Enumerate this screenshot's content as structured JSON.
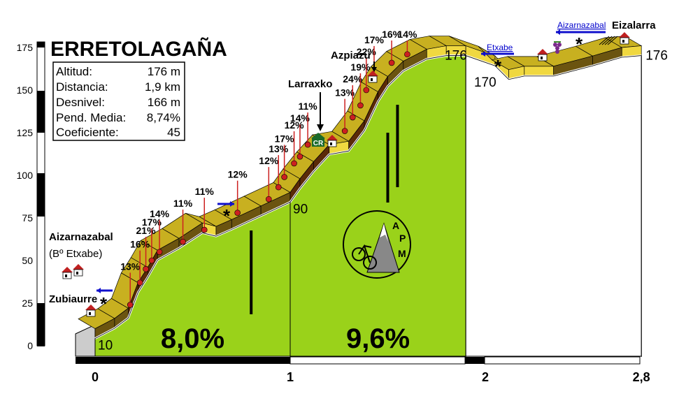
{
  "title": "ERRETOLAGAÑA",
  "stats": [
    {
      "label": "Altitud:",
      "value": "176 m"
    },
    {
      "label": "Distancia:",
      "value": "1,9 km"
    },
    {
      "label": "Desnivel:",
      "value": "166 m"
    },
    {
      "label": "Pend. Media:",
      "value": "8,74%"
    },
    {
      "label": "Coeficiente:",
      "value": "45"
    }
  ],
  "chart_data": {
    "type": "area",
    "xlim": [
      0,
      2.8
    ],
    "ylim": [
      0,
      175
    ],
    "y_ticks": [
      "0",
      "25",
      "50",
      "75",
      "100",
      "125",
      "150",
      "175"
    ],
    "x_ticks": [
      "0",
      "1",
      "2",
      "2,8"
    ],
    "profile": [
      {
        "x": 0.0,
        "y": 10
      },
      {
        "x": 0.1,
        "y": 16
      },
      {
        "x": 0.17,
        "y": 22
      },
      {
        "x": 0.22,
        "y": 37
      },
      {
        "x": 0.27,
        "y": 46
      },
      {
        "x": 0.32,
        "y": 56
      },
      {
        "x": 0.43,
        "y": 63
      },
      {
        "x": 0.55,
        "y": 72
      },
      {
        "x": 0.62,
        "y": 70
      },
      {
        "x": 0.7,
        "y": 74
      },
      {
        "x": 0.85,
        "y": 82
      },
      {
        "x": 1.0,
        "y": 90
      },
      {
        "x": 1.05,
        "y": 98
      },
      {
        "x": 1.12,
        "y": 108
      },
      {
        "x": 1.2,
        "y": 118
      },
      {
        "x": 1.3,
        "y": 120
      },
      {
        "x": 1.38,
        "y": 132
      },
      {
        "x": 1.45,
        "y": 149
      },
      {
        "x": 1.5,
        "y": 158
      },
      {
        "x": 1.58,
        "y": 167
      },
      {
        "x": 1.7,
        "y": 174
      },
      {
        "x": 1.8,
        "y": 176
      },
      {
        "x": 1.9,
        "y": 176
      },
      {
        "x": 2.05,
        "y": 170
      },
      {
        "x": 2.12,
        "y": 162
      },
      {
        "x": 2.2,
        "y": 164
      },
      {
        "x": 2.35,
        "y": 164
      },
      {
        "x": 2.55,
        "y": 170
      },
      {
        "x": 2.7,
        "y": 175
      },
      {
        "x": 2.8,
        "y": 176
      }
    ],
    "section_averages": [
      {
        "x_from": 0,
        "x_to": 1,
        "label": "8,0%"
      },
      {
        "x_from": 1,
        "x_to": 1.9,
        "label": "9,6%"
      }
    ],
    "altitude_labels": [
      {
        "x": 0.0,
        "y": 10,
        "label": "10"
      },
      {
        "x": 1.0,
        "y": 90,
        "label": "90"
      },
      {
        "x": 1.9,
        "y": 176,
        "label": "176"
      },
      {
        "x": 2.05,
        "y": 170,
        "label": "170"
      },
      {
        "x": 2.8,
        "y": 176,
        "label": "176"
      }
    ],
    "gradients": [
      {
        "x": 0.18,
        "y": 24,
        "label": "13%"
      },
      {
        "x": 0.23,
        "y": 37,
        "label": "16%"
      },
      {
        "x": 0.26,
        "y": 45,
        "label": "21%"
      },
      {
        "x": 0.29,
        "y": 50,
        "label": "17%"
      },
      {
        "x": 0.33,
        "y": 55,
        "label": "14%"
      },
      {
        "x": 0.45,
        "y": 61,
        "label": "11%"
      },
      {
        "x": 0.56,
        "y": 68,
        "label": "11%"
      },
      {
        "x": 0.73,
        "y": 78,
        "label": "12%"
      },
      {
        "x": 0.89,
        "y": 86,
        "label": "12%"
      },
      {
        "x": 0.94,
        "y": 93,
        "label": "13%"
      },
      {
        "x": 0.97,
        "y": 99,
        "label": "17%"
      },
      {
        "x": 1.02,
        "y": 107,
        "label": "12%"
      },
      {
        "x": 1.05,
        "y": 111,
        "label": "14%"
      },
      {
        "x": 1.09,
        "y": 118,
        "label": "11%"
      },
      {
        "x": 1.28,
        "y": 126,
        "label": "13%"
      },
      {
        "x": 1.32,
        "y": 134,
        "label": "24%"
      },
      {
        "x": 1.36,
        "y": 141,
        "label": "19%"
      },
      {
        "x": 1.39,
        "y": 150,
        "label": "22%"
      },
      {
        "x": 1.43,
        "y": 157,
        "label": "17%"
      },
      {
        "x": 1.52,
        "y": 166,
        "label": "16%"
      },
      {
        "x": 1.6,
        "y": 171,
        "label": "14%"
      }
    ]
  },
  "places": {
    "aizarnazabal": "Aizarnazabal",
    "etxabe": "(Bº Etxabe)",
    "zubiaurre": "Zubiaurre",
    "larraxko": "Larraxko",
    "azpiazu": "Azpiazu",
    "eizalarra": "Eizalarra"
  },
  "signs": {
    "etxabe": "Etxabe",
    "aizarnazabal": "Aizarnazabal",
    "cr": "CR"
  },
  "logo_text": "APM",
  "colors": {
    "grass": "#9ad21a",
    "road": "#6b5410",
    "road_steep": "#5a2a08",
    "road_easy": "#f0d840",
    "marker": "#cc2020",
    "arrow": "#1010cc"
  }
}
